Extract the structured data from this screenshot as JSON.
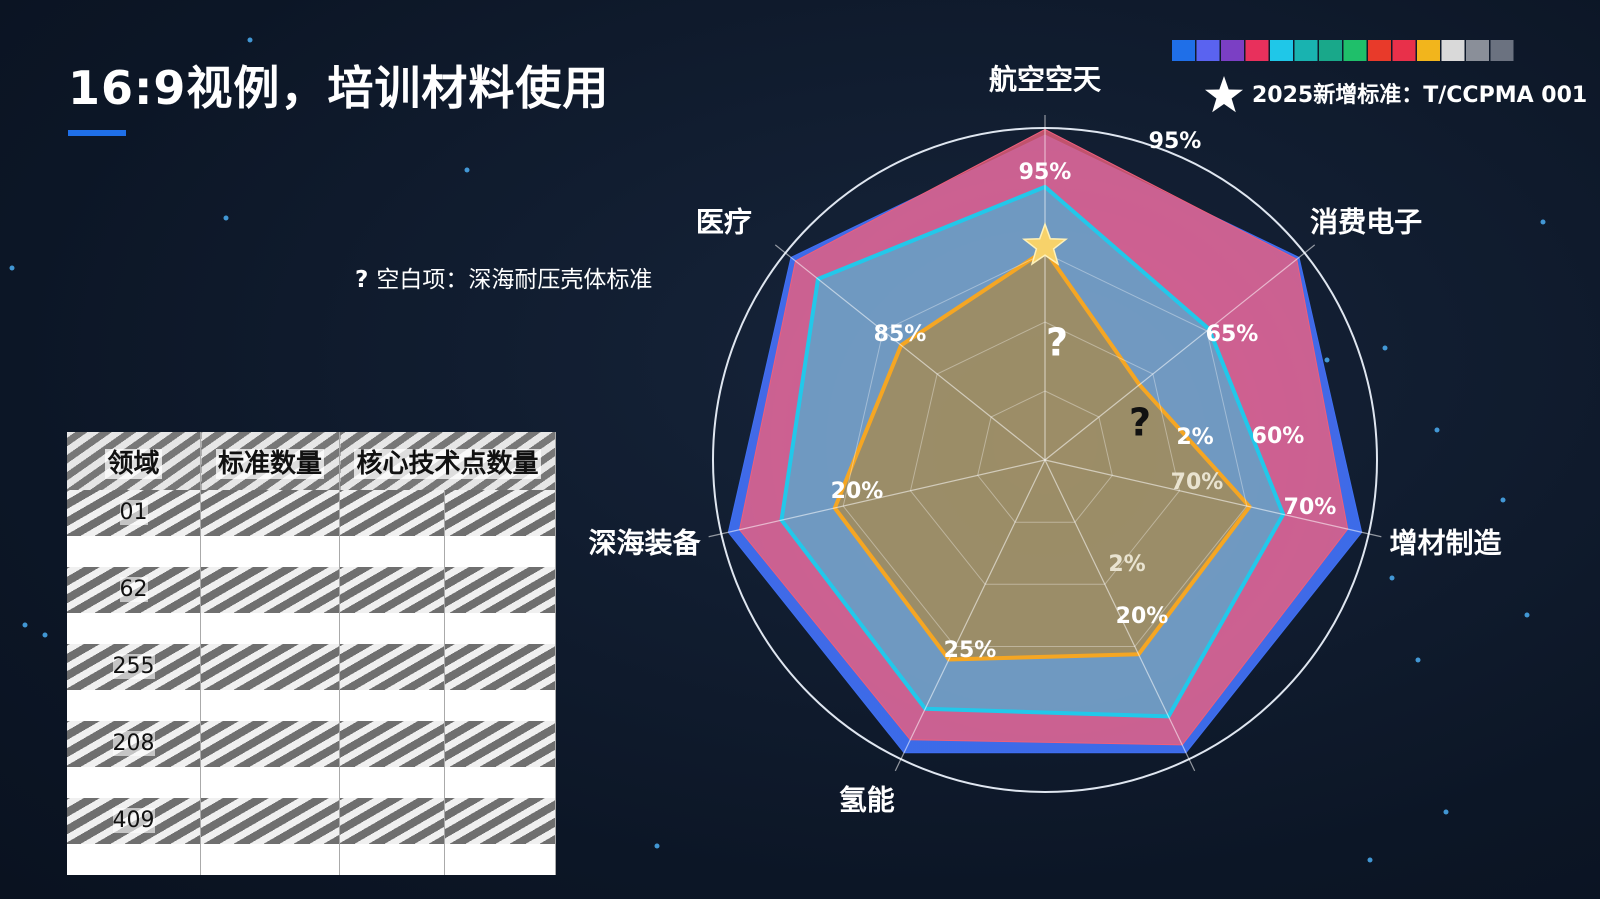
{
  "header": {
    "title": "16:9视例，培训材料使用"
  },
  "note": {
    "mark": "?",
    "text": "空白项：深海耐压壳体标准"
  },
  "new_standard": "2025新增标准：T/CCPMA 001",
  "swatches": [
    "#1f6fe8",
    "#5a63f0",
    "#7b3fc4",
    "#e8305c",
    "#1fc7e8",
    "#19b3b0",
    "#19a88a",
    "#1fbf6a",
    "#e83a2a",
    "#e8304a",
    "#f2b51c",
    "#d9d9d9",
    "#8a8f99",
    "#6b7280"
  ],
  "chart_data": {
    "type": "radar",
    "categories": [
      "航空空天",
      "消费电子",
      "增材制造",
      null,
      "氢能",
      "深海装备",
      "医疗"
    ],
    "rlim": [
      0,
      120
    ],
    "series": [
      {
        "color": "#3f6ff2",
        "values": [
          113,
          113,
          113,
          113,
          113,
          113,
          113
        ]
      },
      {
        "color": "#ee5f7c",
        "values": [
          115,
          112,
          108,
          110,
          108,
          109,
          111
        ]
      },
      {
        "color": "#22c8ea",
        "values": [
          95,
          73,
          85,
          99,
          96,
          94,
          101
        ]
      },
      {
        "color": "#f5a623",
        "values": [
          73,
          42,
          73,
          75,
          77,
          75,
          64
        ]
      }
    ],
    "annotations": [
      "95%",
      "95%",
      "65%",
      "60%",
      "70%",
      "2%",
      "70%",
      "2%",
      "20%",
      "25%",
      "20%",
      "85%",
      "?",
      "?"
    ]
  },
  "table": {
    "header": [
      "领域",
      "标准数量",
      "核心技术点数量"
    ],
    "rows": [
      [
        "01"
      ],
      [
        "62"
      ],
      [
        "255"
      ],
      [
        "208"
      ],
      [
        "409"
      ]
    ]
  }
}
